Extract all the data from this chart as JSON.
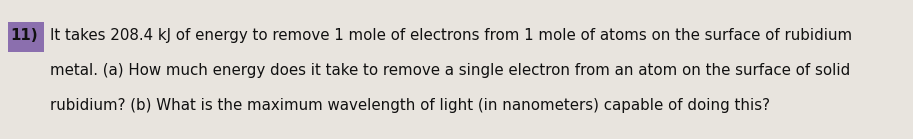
{
  "background_color": "#e8e4de",
  "number": "11)",
  "line1": "It takes 208.4 kJ of energy to remove 1 mole of electrons from 1 mole of atoms on the surface of rubidium",
  "line2": "metal. (a) How much energy does it take to remove a single electron from an atom on the surface of solid",
  "line3": "rubidium? (b) What is the maximum wavelength of light (in nanometers) capable of doing this?",
  "font_size": 10.8,
  "text_color": "#111111",
  "number_color": "#111111",
  "number_highlight_color": "#8b6fae",
  "fig_width": 9.13,
  "fig_height": 1.39,
  "dpi": 100
}
